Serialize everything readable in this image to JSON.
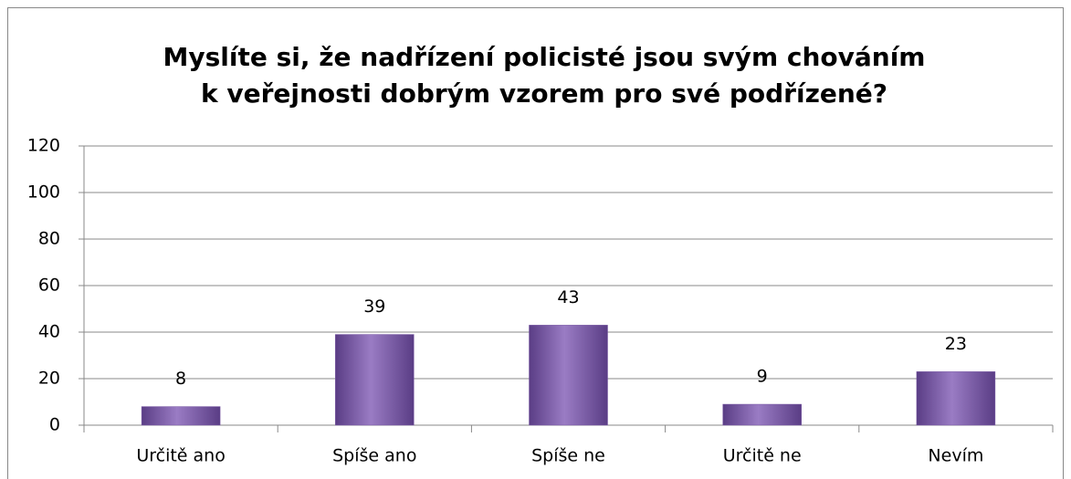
{
  "chart_data": {
    "type": "bar",
    "title": [
      "Myslíte si, že nadřízení policisté jsou svým chováním",
      "k veřejnosti dobrým vzorem pro své podřízené?"
    ],
    "categories": [
      "Určitě ano",
      "Spíše ano",
      "Spíše ne",
      "Určitě ne",
      "Nevím"
    ],
    "values": [
      8,
      39,
      43,
      9,
      23
    ],
    "color": "#7b5aa6",
    "ylim": [
      0,
      120
    ],
    "yticks": [
      0,
      20,
      40,
      60,
      80,
      100,
      120
    ],
    "grid": true
  }
}
